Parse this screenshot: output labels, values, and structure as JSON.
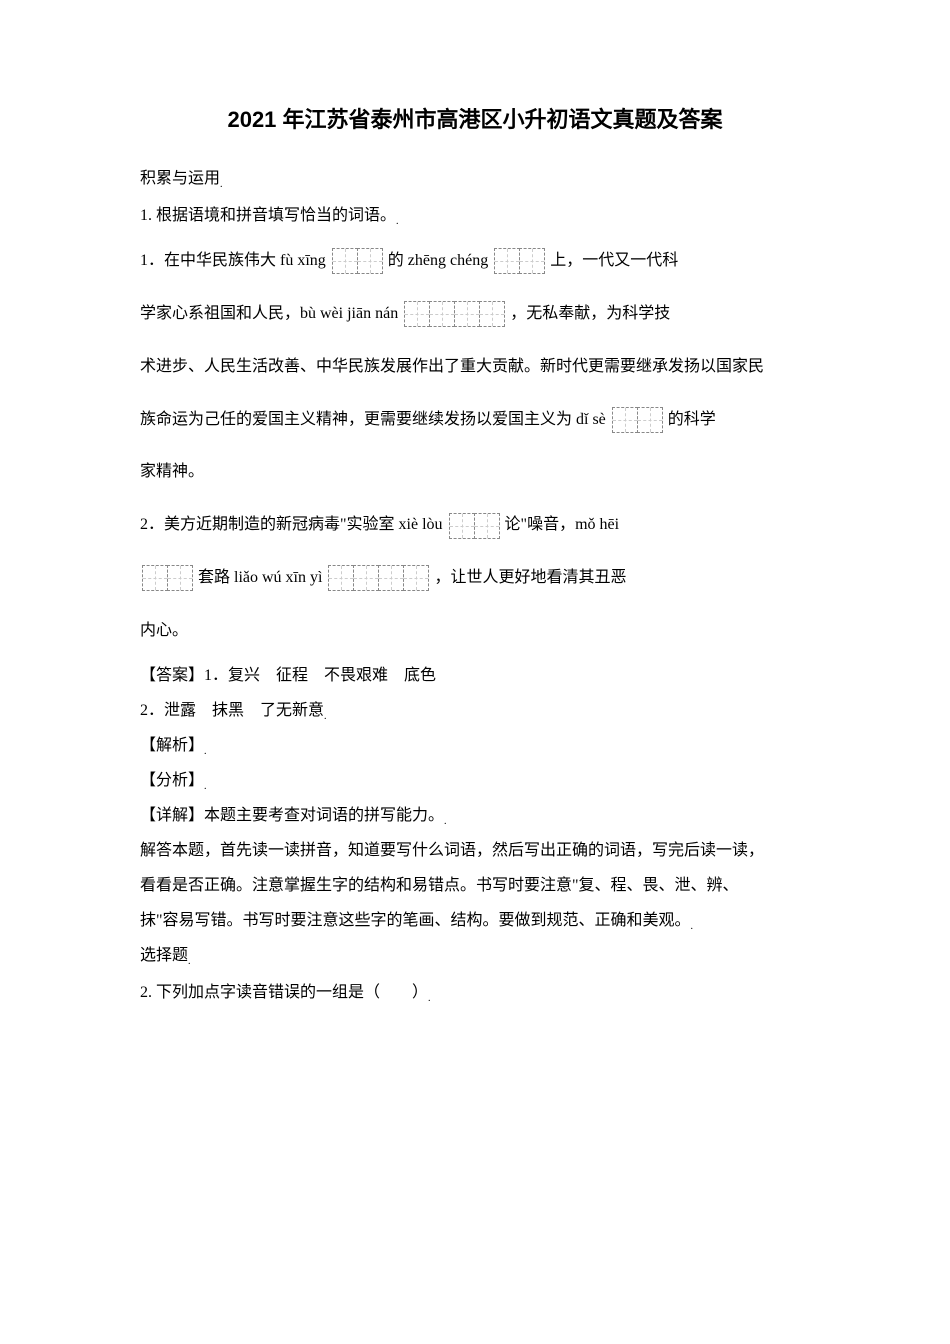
{
  "title": "2021 年江苏省泰州市高港区小升初语文真题及答案",
  "section1": {
    "header": "积累与运用",
    "q1": {
      "number": "1. 根据语境和拼音填写恰当的词语。",
      "sub1": {
        "prefix": "1．在中华民族伟大 fù xīng",
        "mid1": "的 zhēng chéng",
        "mid2": "上，一代又一代科",
        "line2_prefix": "学家心系祖国和人民，bù wèi jiān nán",
        "line2_suffix": "，无私奉献，为科学技",
        "line3": "术进步、人民生活改善、中华民族发展作出了重大贡献。新时代更需要继承发扬以国家民",
        "line4_prefix": "族命运为己任的爱国主义精神，更需要继续发扬以爱国主义为 dǐ sè",
        "line4_suffix": "的科学",
        "line5": "家精神。"
      },
      "sub2": {
        "line1_prefix": "2．美方近期制造的新冠病毒\"实验室 xiè lòu",
        "line1_suffix": "论\"噪音，mǒ hēi",
        "line2_mid": "套路 liǎo wú xīn yì",
        "line2_suffix": "，让世人更好地看清其丑恶",
        "line3": "内心。"
      }
    },
    "answer": {
      "label": "【答案】",
      "text1": "1．复兴　征程　不畏艰难　底色",
      "text2": "2．泄露　抹黑　了无新意"
    },
    "analysis": {
      "label1": "【解析】",
      "label2": "【分析】",
      "label3": "【详解】",
      "detail_text": "本题主要考查对词语的拼写能力。",
      "detail_para1": "解答本题，首先读一读拼音，知道要写什么词语，然后写出正确的词语，写完后读一读，",
      "detail_para2": "看看是否正确。注意掌握生字的结构和易错点。书写时要注意\"复、程、畏、泄、辨、",
      "detail_para3": "抹\"容易写错。书写时要注意这些字的笔画、结构。要做到规范、正确和美观。"
    }
  },
  "section2": {
    "header": "选择题",
    "q2": {
      "text": "2. 下列加点字读音错误的一组是（　　）"
    }
  },
  "boxes": {
    "box2": 2,
    "box4": 4
  }
}
